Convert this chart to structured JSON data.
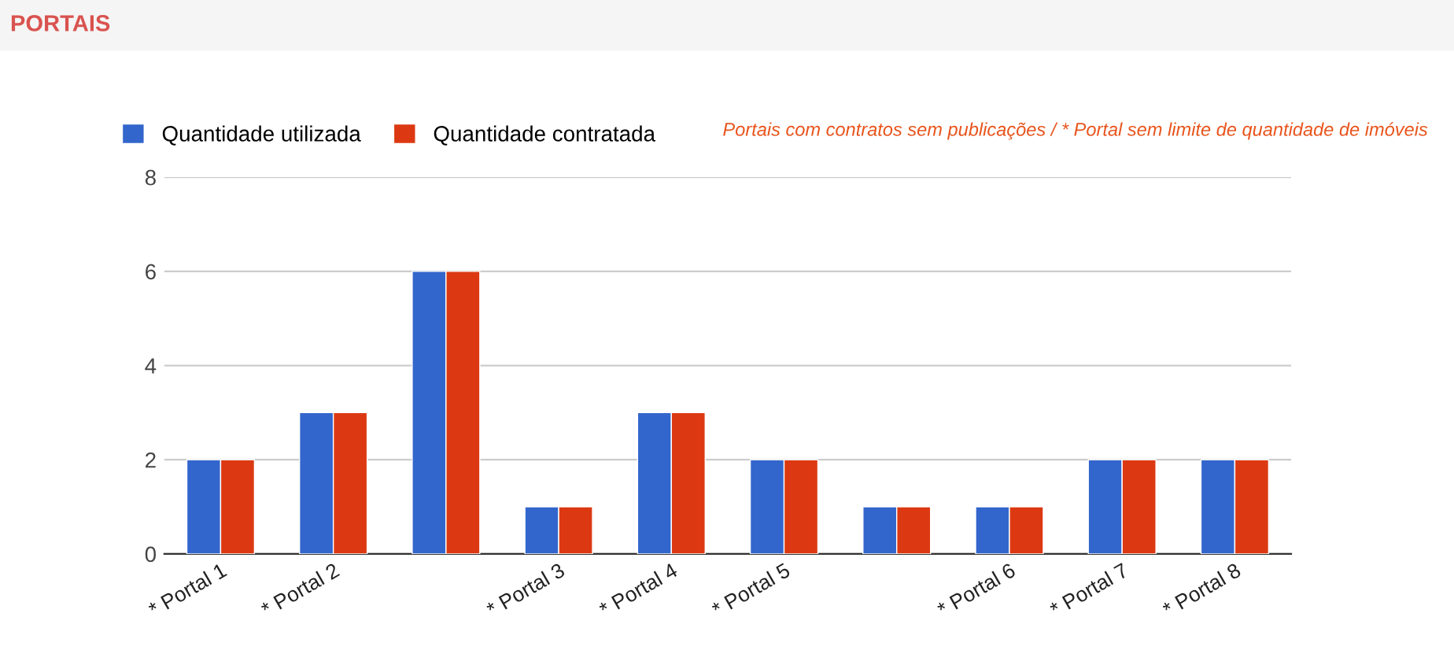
{
  "chart_data": {
    "type": "bar",
    "title": "PORTAIS",
    "categories": [
      "* Portal 1",
      "* Portal 2",
      null,
      "* Portal 3",
      "* Portal 4",
      "* Portal 5",
      null,
      "* Portal 6",
      "* Portal 7",
      "* Portal 8"
    ],
    "series": [
      {
        "name": "Quantidade utilizada",
        "color": "#3366cc",
        "values": [
          2,
          3,
          6,
          1,
          3,
          2,
          1,
          1,
          2,
          2
        ]
      },
      {
        "name": "Quantidade contratada",
        "color": "#dc3912",
        "values": [
          2,
          3,
          6,
          1,
          3,
          2,
          1,
          1,
          2,
          2
        ]
      }
    ],
    "annotations": [
      "Portais com contratos sem publicações / * Portal sem limite de quantidade de imóveis"
    ],
    "ylim": [
      0,
      8
    ],
    "yticks": [
      0,
      2,
      4,
      6,
      8
    ],
    "grid": "y",
    "legend": "top left"
  }
}
